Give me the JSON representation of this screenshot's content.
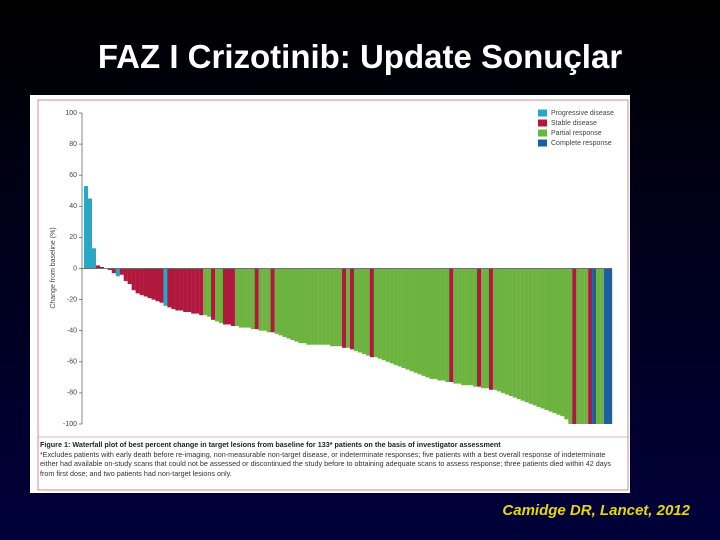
{
  "title": "FAZ I Crizotinib: Update Sonuçlar",
  "citation": "Camidge DR, Lancet, 2012",
  "chart_data": {
    "type": "waterfall",
    "y_label": "Change from baseline (%)",
    "caption": "Figure 1: Waterfall plot of best percent change in target lesions from baseline for 133* patients on the basis of investigator assessment",
    "note": "*Excludes patients with early death before re-imaging, non-measurable non-target disease, or indeterminate responses; five patients with a best overall response of indeterminate either had available on-study scans that could not be assessed or discontinued the study before to obtaining adequate scans to assess response; three patients died within 42 days from first dose; and two patients had non-target lesions only.",
    "ylim": [
      -100,
      100
    ],
    "yticks": [
      100,
      80,
      60,
      40,
      20,
      0,
      -20,
      -40,
      -60,
      -80,
      -100
    ],
    "legend": [
      {
        "name": "Progressive disease",
        "color": "#2aa6c6"
      },
      {
        "name": "Stable disease",
        "color": "#b0183e"
      },
      {
        "name": "Partial response",
        "color": "#6db33f"
      },
      {
        "name": "Complete response",
        "color": "#1a5fa0"
      }
    ],
    "values": [
      53,
      45,
      13,
      2,
      1,
      0,
      -1,
      -3,
      -5,
      -4,
      -8,
      -10,
      -14,
      -16,
      -17,
      -18,
      -19,
      -20,
      -21,
      -22,
      -24,
      -25,
      -26,
      -27,
      -27,
      -28,
      -28,
      -29,
      -29,
      -30,
      -30,
      -31,
      -33,
      -34,
      -35,
      -36,
      -36,
      -37,
      -37,
      -38,
      -38,
      -38,
      -39,
      -39,
      -40,
      -40,
      -41,
      -41,
      -42,
      -43,
      -44,
      -45,
      -46,
      -47,
      -48,
      -48,
      -49,
      -49,
      -49,
      -49,
      -49,
      -49,
      -50,
      -50,
      -50,
      -51,
      -51,
      -52,
      -53,
      -54,
      -55,
      -56,
      -57,
      -57,
      -58,
      -59,
      -60,
      -61,
      -62,
      -63,
      -64,
      -65,
      -66,
      -67,
      -68,
      -69,
      -70,
      -71,
      -71,
      -72,
      -72,
      -73,
      -73,
      -74,
      -74,
      -75,
      -75,
      -75,
      -76,
      -76,
      -77,
      -77,
      -78,
      -78,
      -79,
      -80,
      -81,
      -82,
      -83,
      -84,
      -85,
      -86,
      -87,
      -88,
      -89,
      -90,
      -91,
      -92,
      -93,
      -94,
      -95,
      -97,
      -100,
      -100,
      -100,
      -100,
      -100,
      -100,
      -100,
      -100,
      -100,
      -100,
      -100
    ],
    "colors": [
      "#2aa6c6",
      "#2aa6c6",
      "#2aa6c6",
      "#b0183e",
      "#b0183e",
      "#b0183e",
      "#b0183e",
      "#b0183e",
      "#2aa6c6",
      "#b0183e",
      "#b0183e",
      "#b0183e",
      "#b0183e",
      "#b0183e",
      "#b0183e",
      "#b0183e",
      "#b0183e",
      "#b0183e",
      "#b0183e",
      "#b0183e",
      "#2aa6c6",
      "#b0183e",
      "#b0183e",
      "#b0183e",
      "#b0183e",
      "#b0183e",
      "#b0183e",
      "#b0183e",
      "#b0183e",
      "#b0183e",
      "#6db33f",
      "#6db33f",
      "#b0183e",
      "#6db33f",
      "#6db33f",
      "#b0183e",
      "#b0183e",
      "#b0183e",
      "#6db33f",
      "#6db33f",
      "#6db33f",
      "#6db33f",
      "#6db33f",
      "#b0183e",
      "#6db33f",
      "#6db33f",
      "#6db33f",
      "#b0183e",
      "#6db33f",
      "#6db33f",
      "#6db33f",
      "#6db33f",
      "#6db33f",
      "#6db33f",
      "#6db33f",
      "#6db33f",
      "#6db33f",
      "#6db33f",
      "#6db33f",
      "#6db33f",
      "#6db33f",
      "#6db33f",
      "#6db33f",
      "#6db33f",
      "#6db33f",
      "#b0183e",
      "#6db33f",
      "#b0183e",
      "#6db33f",
      "#6db33f",
      "#6db33f",
      "#6db33f",
      "#b0183e",
      "#6db33f",
      "#6db33f",
      "#6db33f",
      "#6db33f",
      "#6db33f",
      "#6db33f",
      "#6db33f",
      "#6db33f",
      "#6db33f",
      "#6db33f",
      "#6db33f",
      "#6db33f",
      "#6db33f",
      "#6db33f",
      "#6db33f",
      "#6db33f",
      "#6db33f",
      "#6db33f",
      "#6db33f",
      "#b0183e",
      "#6db33f",
      "#6db33f",
      "#6db33f",
      "#6db33f",
      "#6db33f",
      "#6db33f",
      "#b0183e",
      "#6db33f",
      "#6db33f",
      "#b0183e",
      "#6db33f",
      "#6db33f",
      "#6db33f",
      "#6db33f",
      "#6db33f",
      "#6db33f",
      "#6db33f",
      "#6db33f",
      "#6db33f",
      "#6db33f",
      "#6db33f",
      "#6db33f",
      "#6db33f",
      "#6db33f",
      "#6db33f",
      "#6db33f",
      "#6db33f",
      "#6db33f",
      "#6db33f",
      "#6db33f",
      "#b0183e",
      "#6db33f",
      "#6db33f",
      "#6db33f",
      "#b0183e",
      "#1a5fa0",
      "#6db33f",
      "#6db33f",
      "#1a5fa0",
      "#1a5fa0"
    ]
  }
}
